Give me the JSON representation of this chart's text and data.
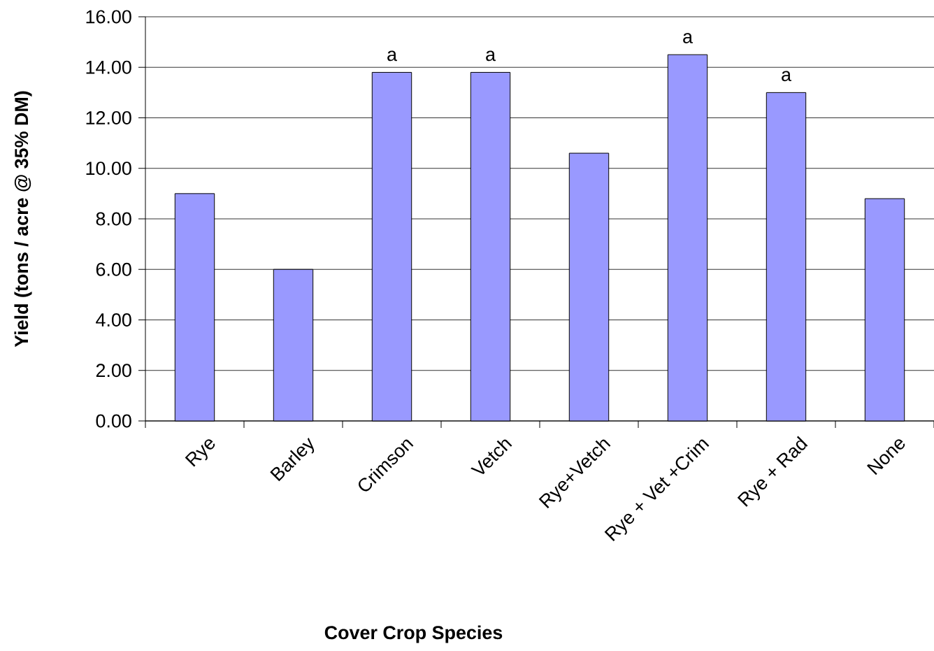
{
  "chart_data": {
    "type": "bar",
    "xlabel": "Cover Crop Species",
    "ylabel": "Yield (tons / acre @ 35% DM)",
    "categories": [
      "Rye",
      "Barley",
      "Crimson",
      "Vetch",
      "Rye+Vetch",
      "Rye + Vet +Crim",
      "Rye + Rad",
      "None"
    ],
    "values": [
      9.0,
      6.0,
      13.8,
      13.8,
      10.6,
      14.5,
      13.0,
      8.8
    ],
    "color": "#9999ff",
    "ylim": [
      0,
      16
    ],
    "yticks": [
      {
        "value": 0,
        "label": "0.00"
      },
      {
        "value": 2,
        "label": "2.00"
      },
      {
        "value": 4,
        "label": "4.00"
      },
      {
        "value": 6,
        "label": "6.00"
      },
      {
        "value": 8,
        "label": "8.00"
      },
      {
        "value": 10,
        "label": "10.00"
      },
      {
        "value": 12,
        "label": "12.00"
      },
      {
        "value": 14,
        "label": "14.00"
      },
      {
        "value": 16,
        "label": "16.00"
      }
    ],
    "grid": "y",
    "annotations": [
      {
        "text": "a",
        "x": "Crimson",
        "y": 13.8
      },
      {
        "text": "a",
        "x": "Vetch",
        "y": 13.8
      },
      {
        "text": "a",
        "x": "Rye + Vet +Crim",
        "y": 14.5
      },
      {
        "text": "a",
        "x": "Rye + Rad",
        "y": 13.0
      }
    ]
  }
}
